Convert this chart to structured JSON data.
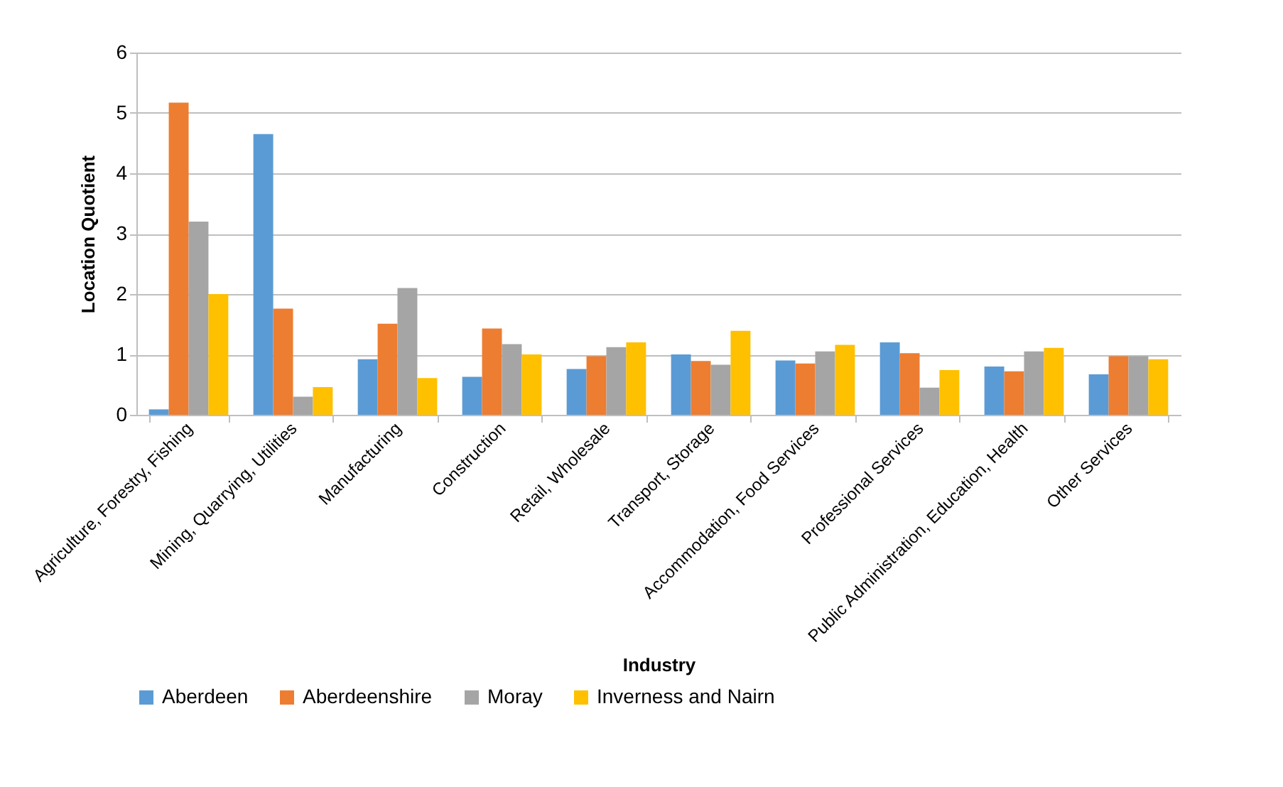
{
  "chart_data": {
    "type": "bar",
    "xlabel": "Industry",
    "ylabel": "Location Quotient",
    "categories": [
      "Agriculture, Forestry, Fishing",
      "Mining, Quarrying, Utilities",
      "Manufacturing",
      "Construction",
      "Retail, Wholesale",
      "Transport, Storage",
      "Accommodation, Food Services",
      "Professional Services",
      "Public Administration, Education, Health",
      "Other Services"
    ],
    "series": [
      {
        "name": "Aberdeen",
        "color": "#5b9bd5",
        "values": [
          0.09,
          4.65,
          0.92,
          0.63,
          0.76,
          1.0,
          0.9,
          1.2,
          0.8,
          0.67
        ]
      },
      {
        "name": "Aberdeenshire",
        "color": "#ed7d31",
        "values": [
          5.17,
          1.76,
          1.51,
          1.43,
          0.97,
          0.89,
          0.85,
          1.02,
          0.72,
          0.97
        ]
      },
      {
        "name": "Moray",
        "color": "#a5a5a5",
        "values": [
          3.2,
          0.3,
          2.1,
          1.17,
          1.12,
          0.83,
          1.05,
          0.45,
          1.05,
          0.97
        ]
      },
      {
        "name": "Inverness and Nairn",
        "color": "#ffc000",
        "values": [
          2.0,
          0.46,
          0.61,
          1.0,
          1.2,
          1.39,
          1.16,
          0.74,
          1.11,
          0.92
        ]
      }
    ],
    "ylim": [
      0,
      6
    ],
    "yticks": [
      0,
      1,
      2,
      3,
      4,
      5,
      6
    ],
    "grid": "y",
    "legend": "bottom"
  }
}
